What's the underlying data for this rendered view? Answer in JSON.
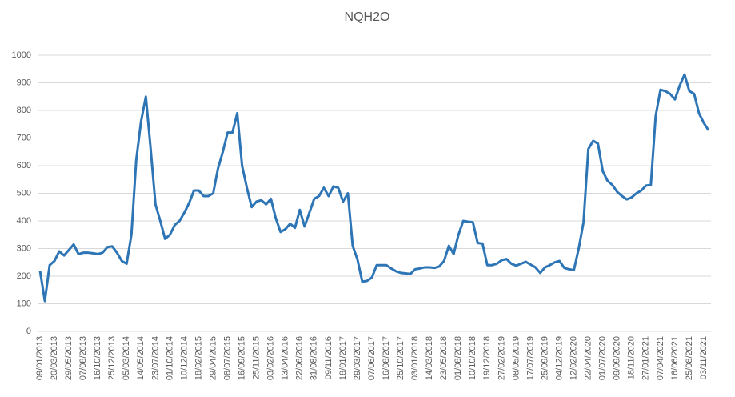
{
  "chart_data": {
    "type": "line",
    "title": "NQH2O",
    "categories": [
      "09/01/2013",
      null,
      null,
      "20/03/2013",
      null,
      null,
      "29/05/2013",
      null,
      null,
      "07/08/2013",
      null,
      null,
      "16/10/2013",
      null,
      null,
      "25/12/2013",
      null,
      null,
      "05/03/2014",
      null,
      null,
      "14/05/2014",
      null,
      null,
      "23/07/2014",
      null,
      null,
      "01/10/2014",
      null,
      null,
      "10/12/2014",
      null,
      null,
      "18/02/2015",
      null,
      null,
      "29/04/2015",
      null,
      null,
      "08/07/2015",
      null,
      null,
      "16/09/2015",
      null,
      null,
      "25/11/2015",
      null,
      null,
      "03/02/2016",
      null,
      null,
      "13/04/2016",
      null,
      null,
      "22/06/2016",
      null,
      null,
      "31/08/2016",
      null,
      null,
      "09/11/2016",
      null,
      null,
      "18/01/2017",
      null,
      null,
      "29/03/2017",
      null,
      null,
      "07/06/2017",
      null,
      null,
      "16/08/2017",
      null,
      null,
      "25/10/2017",
      null,
      null,
      "03/01/2018",
      null,
      null,
      "14/03/2018",
      null,
      null,
      "23/05/2018",
      null,
      null,
      "01/08/2018",
      null,
      null,
      "10/10/2018",
      null,
      null,
      "19/12/2018",
      null,
      null,
      "27/02/2019",
      null,
      null,
      "08/05/2019",
      null,
      null,
      "17/07/2019",
      null,
      null,
      "25/09/2019",
      null,
      null,
      "04/12/2019",
      null,
      null,
      "12/02/2020",
      null,
      null,
      "22/04/2020",
      null,
      null,
      "01/07/2020",
      null,
      null,
      "09/09/2020",
      null,
      null,
      "18/11/2020",
      null,
      null,
      "27/01/2021",
      null,
      null,
      "07/04/2021",
      null,
      null,
      "16/06/2021",
      null,
      null,
      "25/08/2021",
      null,
      null,
      "03/11/2021",
      null
    ],
    "series": [
      {
        "color": "#2e75b6",
        "values": [
          220,
          110,
          240,
          255,
          290,
          275,
          295,
          315,
          280,
          285,
          285,
          283,
          280,
          285,
          305,
          308,
          285,
          255,
          245,
          350,
          620,
          760,
          850,
          660,
          460,
          400,
          335,
          350,
          385,
          400,
          430,
          465,
          510,
          510,
          490,
          490,
          500,
          590,
          650,
          720,
          720,
          790,
          600,
          520,
          450,
          470,
          475,
          460,
          480,
          410,
          360,
          370,
          390,
          375,
          440,
          380,
          430,
          480,
          490,
          520,
          490,
          525,
          520,
          470,
          500,
          310,
          260,
          180,
          183,
          195,
          240,
          240,
          240,
          228,
          218,
          212,
          210,
          208,
          225,
          228,
          232,
          232,
          230,
          235,
          255,
          310,
          280,
          350,
          400,
          397,
          395,
          320,
          318,
          240,
          240,
          245,
          258,
          262,
          245,
          238,
          245,
          252,
          242,
          232,
          212,
          232,
          240,
          250,
          255,
          230,
          225,
          222,
          300,
          395,
          660,
          690,
          680,
          580,
          545,
          530,
          505,
          490,
          478,
          485,
          500,
          510,
          528,
          530,
          780,
          875,
          870,
          860,
          840,
          890,
          930,
          870,
          860,
          790,
          755,
          728
        ]
      }
    ],
    "ylim": [
      0,
      1000
    ],
    "yticks": [
      0,
      100,
      200,
      300,
      400,
      500,
      600,
      700,
      800,
      900,
      1000
    ],
    "grid": true
  }
}
